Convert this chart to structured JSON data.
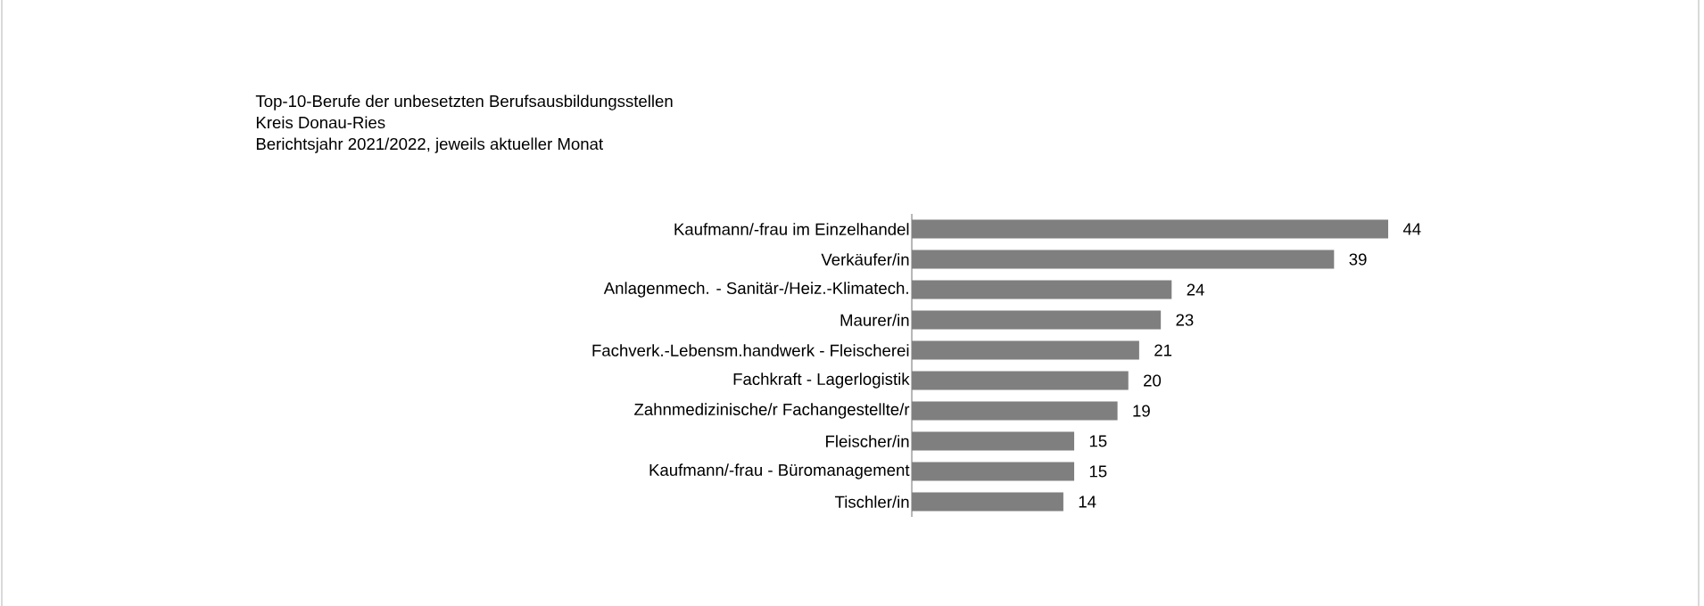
{
  "chart_data": {
    "type": "bar",
    "orientation": "horizontal",
    "title": "Top-10-Berufe der unbesetzten Berufsausbildungsstellen",
    "subtitle": "Kreis Donau-Ries",
    "annotations": [
      "Berichtsjahr 2021/2022, jeweils aktueller Monat"
    ],
    "categories": [
      "Kaufmann/-frau im Einzelhandel",
      "Verkäufer/in",
      "Anlagenmech. - Sanitär-/Heiz.-Klimatech.",
      "Maurer/in",
      "Fachverk.-Lebensm.handwerk - Fleischerei",
      "Fachkraft - Lagerlogistik",
      "Zahnmedizinische/r Fachangestellte/r",
      "Fleischer/in",
      "Kaufmann/-frau - Büromanagement",
      "Tischler/in"
    ],
    "values": [
      44,
      39,
      24,
      23,
      21,
      20,
      19,
      15,
      15,
      14
    ],
    "color": "#7f7f7f",
    "data_labels": true
  }
}
